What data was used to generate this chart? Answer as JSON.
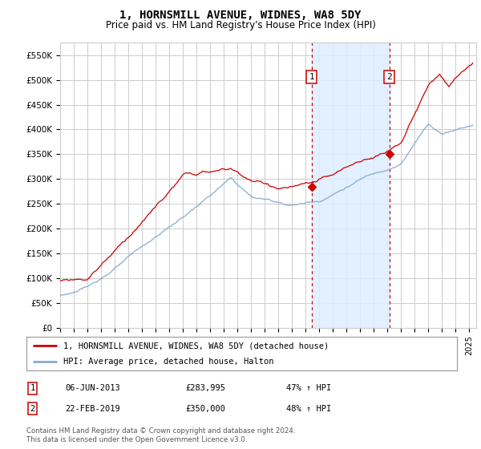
{
  "title": "1, HORNSMILL AVENUE, WIDNES, WA8 5DY",
  "subtitle": "Price paid vs. HM Land Registry's House Price Index (HPI)",
  "xlim_start": 1995.0,
  "xlim_end": 2025.5,
  "ylim": [
    0,
    575000
  ],
  "yticks": [
    0,
    50000,
    100000,
    150000,
    200000,
    250000,
    300000,
    350000,
    400000,
    450000,
    500000,
    550000
  ],
  "ytick_labels": [
    "£0",
    "£50K",
    "£100K",
    "£150K",
    "£200K",
    "£250K",
    "£300K",
    "£350K",
    "£400K",
    "£450K",
    "£500K",
    "£550K"
  ],
  "sale1_date": 2013.43,
  "sale1_price": 283995,
  "sale1_label": "1",
  "sale2_date": 2019.14,
  "sale2_price": 350000,
  "sale2_label": "2",
  "legend_line1": "1, HORNSMILL AVENUE, WIDNES, WA8 5DY (detached house)",
  "legend_line2": "HPI: Average price, detached house, Halton",
  "table_rows": [
    [
      "1",
      "06-JUN-2013",
      "£283,995",
      "47% ↑ HPI"
    ],
    [
      "2",
      "22-FEB-2019",
      "£350,000",
      "48% ↑ HPI"
    ]
  ],
  "footnote": "Contains HM Land Registry data © Crown copyright and database right 2024.\nThis data is licensed under the Open Government Licence v3.0.",
  "red_color": "#cc0000",
  "blue_color": "#88aacc",
  "background_color": "#ffffff",
  "grid_color": "#cccccc",
  "shaded_color": "#ddeeff"
}
